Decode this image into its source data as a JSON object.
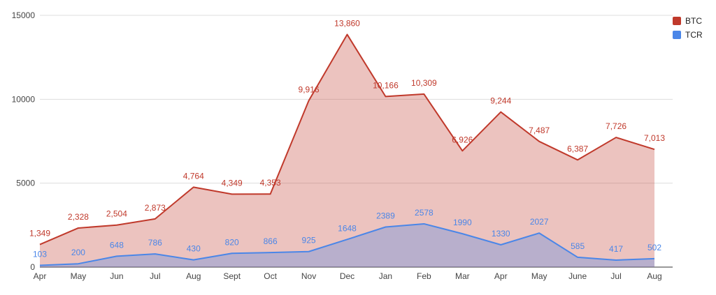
{
  "chart_data": {
    "type": "area",
    "categories": [
      "Apr",
      "May",
      "Jun",
      "Jul",
      "Aug",
      "Sept",
      "Oct",
      "Nov",
      "Dec",
      "Jan",
      "Feb",
      "Mar",
      "Apr",
      "May",
      "June",
      "Jul",
      "Aug"
    ],
    "series": [
      {
        "name": "BTC",
        "color": "#c0392b",
        "values": [
          1349,
          2328,
          2504,
          2873,
          4764,
          4349,
          4353,
          9916,
          13860,
          10166,
          10309,
          6926,
          9244,
          7487,
          6387,
          7726,
          7013
        ],
        "labels": [
          "1,349",
          "2,328",
          "2,504",
          "2,873",
          "4,764",
          "4,349",
          "4,353",
          "9,916",
          "13,860",
          "10,166",
          "10,309",
          "6,926",
          "9,244",
          "7,487",
          "6,387",
          "7,726",
          "7,013"
        ]
      },
      {
        "name": "TCR",
        "color": "#4a86e8",
        "values": [
          103,
          200,
          648,
          786,
          430,
          820,
          866,
          925,
          1648,
          2389,
          2578,
          1990,
          1330,
          2027,
          585,
          417,
          502
        ],
        "labels": [
          "103",
          "200",
          "648",
          "786",
          "430",
          "820",
          "866",
          "925",
          "1648",
          "2389",
          "2578",
          "1990",
          "1330",
          "2027",
          "585",
          "417",
          "502"
        ]
      }
    ],
    "y_ticks": [
      "0",
      "5000",
      "10000",
      "15000"
    ],
    "ylim": [
      0,
      15000
    ],
    "grid": true,
    "legend_position": "top-right"
  }
}
